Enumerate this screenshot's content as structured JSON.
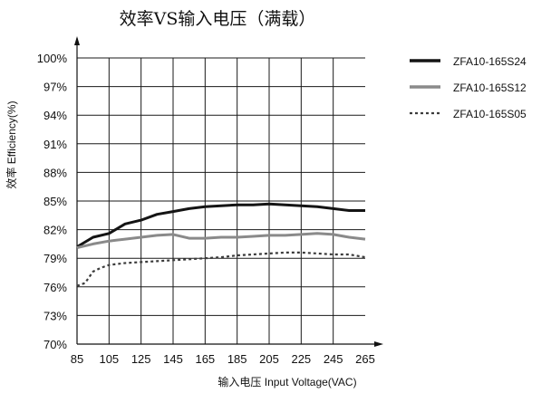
{
  "chart_data": {
    "type": "line",
    "title": "效率VS输入电压（满载）",
    "xlabel": "输入电压 Input Voltage(VAC)",
    "ylabel": "效率 Efficiency(%)",
    "x_ticks": [
      "85",
      "105",
      "125",
      "145",
      "165",
      "185",
      "205",
      "225",
      "245",
      "265"
    ],
    "y_ticks": [
      "70%",
      "73%",
      "76%",
      "79%",
      "82%",
      "85%",
      "88%",
      "91%",
      "94%",
      "97%",
      "100%"
    ],
    "xlim": [
      85,
      265
    ],
    "ylim": [
      70,
      100
    ],
    "grid": true,
    "legend_position": "right",
    "series": [
      {
        "name": "ZFA10-165S24",
        "color": "#141414",
        "style": "solid-thick",
        "x": [
          85,
          95,
          105,
          115,
          125,
          135,
          145,
          155,
          165,
          175,
          185,
          195,
          205,
          215,
          225,
          235,
          245,
          255,
          265
        ],
        "values": [
          80.2,
          81.2,
          81.6,
          82.6,
          83.0,
          83.6,
          83.9,
          84.2,
          84.4,
          84.5,
          84.6,
          84.6,
          84.7,
          84.6,
          84.5,
          84.4,
          84.2,
          84.0,
          84.0
        ]
      },
      {
        "name": "ZFA10-165S12",
        "color": "#8a8a8a",
        "style": "solid-thick",
        "x": [
          85,
          95,
          105,
          115,
          125,
          135,
          145,
          155,
          165,
          175,
          185,
          195,
          205,
          215,
          225,
          235,
          245,
          255,
          265
        ],
        "values": [
          80.1,
          80.5,
          80.8,
          81.0,
          81.2,
          81.4,
          81.5,
          81.1,
          81.1,
          81.2,
          81.2,
          81.3,
          81.4,
          81.4,
          81.5,
          81.6,
          81.5,
          81.2,
          81.0
        ]
      },
      {
        "name": "ZFA10-165S05",
        "color": "#3c3c3c",
        "style": "dotted",
        "x": [
          85,
          90,
          95,
          100,
          105,
          115,
          125,
          135,
          145,
          155,
          165,
          175,
          185,
          195,
          205,
          215,
          225,
          235,
          245,
          255,
          265
        ],
        "values": [
          76.1,
          76.4,
          77.6,
          78.0,
          78.3,
          78.5,
          78.6,
          78.7,
          78.8,
          78.9,
          79.0,
          79.1,
          79.3,
          79.4,
          79.5,
          79.6,
          79.6,
          79.5,
          79.4,
          79.4,
          79.1
        ]
      }
    ]
  }
}
